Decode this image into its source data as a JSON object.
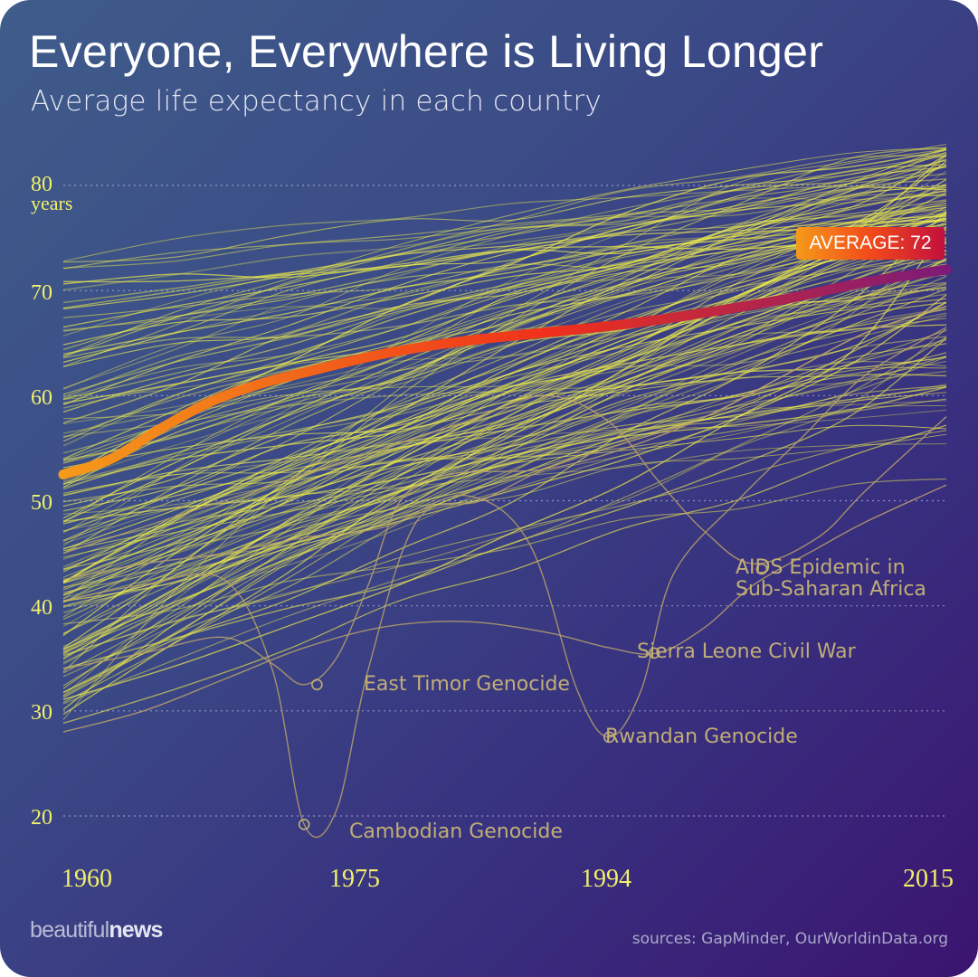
{
  "header": {
    "title": "Everyone, Everywhere is Living Longer",
    "subtitle": "Average life expectancy in each country"
  },
  "chart_data": {
    "type": "line",
    "title": "Everyone, Everywhere is Living Longer",
    "subtitle": "Average life expectancy in each country",
    "xlabel": "",
    "ylabel": "years",
    "xlim": [
      1960,
      2015
    ],
    "ylim": [
      18,
      84
    ],
    "y_ticks": [
      20,
      30,
      40,
      50,
      60,
      70,
      80
    ],
    "y_tick_labels": [
      "20",
      "30",
      "40",
      "50",
      "60",
      "70",
      "80"
    ],
    "y_unit": "years",
    "x_tick_labels": [
      "1960",
      "1975",
      "1994",
      "2015"
    ],
    "x_ticks": [
      1960,
      1975,
      1994,
      2015
    ],
    "grid": true,
    "average": {
      "label": "AVERAGE",
      "final_value_label": "72",
      "x": [
        1960,
        1963,
        1966,
        1969,
        1972,
        1975,
        1980,
        1985,
        1990,
        1995,
        2000,
        2005,
        2010,
        2015
      ],
      "y": [
        52.5,
        54.0,
        56.8,
        59.3,
        61.0,
        62.2,
        64.0,
        65.2,
        66.0,
        66.8,
        67.9,
        69.2,
        70.8,
        72.0
      ]
    },
    "series": [
      {
        "name": "Cambodia",
        "x": [
          1960,
          1965,
          1970,
          1973,
          1975,
          1977,
          1979,
          1982,
          1986,
          1990,
          1995,
          2000,
          2005,
          2010,
          2015
        ],
        "y": [
          40.5,
          42.0,
          42.5,
          34.0,
          19.2,
          20.5,
          34.0,
          48.0,
          50.0,
          53.0,
          55.5,
          58.0,
          62.0,
          66.0,
          68.5
        ]
      },
      {
        "name": "East Timor",
        "x": [
          1960,
          1965,
          1970,
          1973,
          1975,
          1977,
          1979,
          1981,
          1984,
          1990,
          1995,
          2000,
          2005,
          2010,
          2015
        ],
        "y": [
          34.0,
          35.5,
          37.0,
          34.5,
          32.5,
          35.0,
          42.0,
          50.0,
          52.5,
          53.0,
          55.0,
          58.0,
          62.0,
          66.0,
          68.5
        ]
      },
      {
        "name": "Rwanda",
        "x": [
          1960,
          1965,
          1970,
          1975,
          1980,
          1985,
          1989,
          1992,
          1994,
          1996,
          1998,
          2002,
          2006,
          2010,
          2015
        ],
        "y": [
          42.5,
          44.0,
          45.0,
          46.5,
          47.5,
          50.5,
          46.0,
          32.0,
          27.5,
          32.0,
          43.0,
          50.0,
          56.0,
          62.0,
          66.5
        ]
      },
      {
        "name": "Sierra Leone",
        "x": [
          1960,
          1965,
          1970,
          1975,
          1980,
          1985,
          1990,
          1994,
          1997,
          2000,
          2003,
          2007,
          2010,
          2015
        ],
        "y": [
          28.0,
          30.0,
          33.0,
          36.0,
          38.0,
          38.5,
          37.5,
          36.0,
          35.5,
          38.0,
          42.0,
          45.5,
          48.0,
          51.5
        ]
      },
      {
        "name": "Sub-Saharan Africa (AIDS)",
        "x": [
          1960,
          1965,
          1970,
          1975,
          1980,
          1985,
          1990,
          1994,
          1997,
          2000,
          2003,
          2007,
          2010,
          2015
        ],
        "y": [
          45.0,
          47.5,
          50.0,
          52.5,
          55.0,
          57.5,
          60.0,
          57.5,
          52.0,
          47.0,
          44.0,
          46.5,
          51.0,
          58.0
        ]
      }
    ],
    "annotations": [
      {
        "text": "Cambodian Genocide",
        "x": 1975,
        "y": 19.2
      },
      {
        "text": "East Timor Genocide",
        "x": 1975.8,
        "y": 32.5
      },
      {
        "text": "Rwandan Genocide",
        "x": 1994,
        "y": 27.5
      },
      {
        "text": "Sierra Leone Civil War",
        "x": 1996.8,
        "y": 35.5
      },
      {
        "lines": [
          "AIDS Epidemic in",
          "Sub-Saharan Africa"
        ],
        "x": 2003.5,
        "y": 43.5
      }
    ],
    "bundle": {
      "description": "background country lines (one thin yellow line per country)",
      "count": 150,
      "start_range": [
        28,
        74
      ],
      "end_range": [
        51,
        84
      ]
    }
  },
  "avg_badge": {
    "label": "AVERAGE",
    "sep": ":",
    "value": "72"
  },
  "footer": {
    "logo_light": "beautiful",
    "logo_bold": "news",
    "sources": "sources: GapMinder, OurWorldinData.org"
  },
  "colors": {
    "bundle_line": "#f0ee4a",
    "event_line": "#b8a06a",
    "tick_text": "#f3f06b",
    "avg_start": "#f59a1a",
    "avg_mid": "#f0301a",
    "avg_end": "#7d1a78"
  }
}
